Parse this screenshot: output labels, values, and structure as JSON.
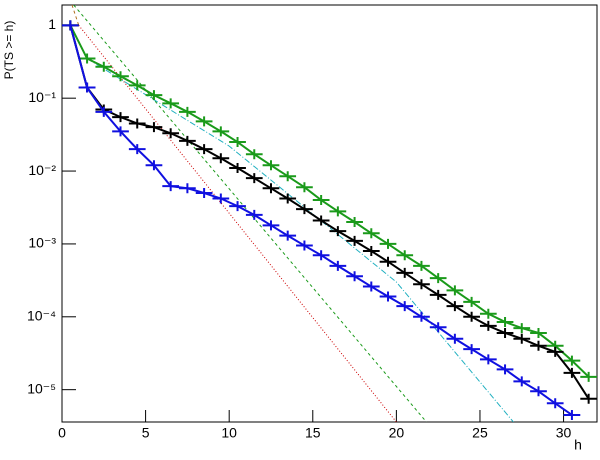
{
  "chart_data": {
    "type": "line",
    "log_y": true,
    "x_label": "h",
    "y_label": "P(TS >= h)",
    "xlim": [
      0,
      32
    ],
    "ylim": [
      3.6e-06,
      1.9
    ],
    "xticks": [
      0,
      5,
      10,
      15,
      20,
      25,
      30
    ],
    "yticks": [
      {
        "value": 1,
        "label": "1"
      },
      {
        "value": 0.1,
        "label": "10⁻¹"
      },
      {
        "value": 0.01,
        "label": "10⁻²"
      },
      {
        "value": 0.001,
        "label": "10⁻³"
      },
      {
        "value": 0.0001,
        "label": "10⁻⁴"
      },
      {
        "value": 1e-05,
        "label": "10⁻⁵"
      }
    ],
    "x": [
      0.5,
      1.5,
      2.5,
      3.5,
      4.5,
      5.5,
      6.5,
      7.5,
      8.5,
      9.5,
      10.5,
      11.5,
      12.5,
      13.5,
      14.5,
      15.5,
      16.5,
      17.5,
      18.5,
      19.5,
      20.5,
      21.5,
      22.5,
      23.5,
      24.5,
      25.5,
      26.5,
      27.5,
      28.5,
      29.5,
      30.5,
      31.5
    ],
    "series": [
      {
        "color": "#1a9a1a",
        "values": [
          1,
          0.35,
          0.27,
          0.2,
          0.15,
          0.11,
          0.085,
          0.065,
          0.048,
          0.035,
          0.025,
          0.017,
          0.012,
          0.0085,
          0.006,
          0.004,
          0.0028,
          0.002,
          0.0014,
          0.001,
          0.0007,
          0.0005,
          0.00034,
          0.00023,
          0.00016,
          0.00011,
          8.5e-05,
          7e-05,
          6e-05,
          4e-05,
          2.5e-05,
          1.5e-05
        ]
      },
      {
        "color": "#000000",
        "values": [
          1,
          0.14,
          0.07,
          0.055,
          0.045,
          0.04,
          0.033,
          0.026,
          0.02,
          0.015,
          0.011,
          0.008,
          0.0058,
          0.0042,
          0.003,
          0.0021,
          0.0015,
          0.0011,
          0.0008,
          0.00057,
          0.0004,
          0.00028,
          0.0002,
          0.00014,
          0.0001,
          7.5e-05,
          6e-05,
          5e-05,
          4e-05,
          3.3e-05,
          1.7e-05,
          7.5e-06
        ]
      },
      {
        "color": "#1010e0",
        "values": [
          1,
          0.14,
          0.065,
          0.035,
          0.02,
          0.012,
          0.0062,
          0.0058,
          0.005,
          0.0042,
          0.0033,
          0.0025,
          0.0018,
          0.0013,
          0.00095,
          0.0007,
          0.0005,
          0.00036,
          0.00026,
          0.00019,
          0.00014,
          0.0001,
          7.2e-05,
          5e-05,
          3.6e-05,
          2.6e-05,
          1.9e-05,
          1.3e-05,
          9.5e-06,
          6.5e-06,
          4.5e-06,
          null
        ]
      }
    ],
    "fits": [
      {
        "color": "#cc0000",
        "dash": "1,2",
        "x": [
          1,
          20
        ],
        "y": [
          1,
          3.6e-06
        ]
      },
      {
        "color": "#1a9a1a",
        "dash": "3,3",
        "x": [
          0.7,
          21.8
        ],
        "y": [
          1.9,
          3.6e-06
        ]
      },
      {
        "color": "#20b0c0",
        "dash": "6,2,1,2",
        "x": [
          1.5,
          10,
          20,
          27
        ],
        "y": [
          0.35,
          0.022,
          0.0003,
          3.6e-06
        ]
      },
      {
        "color": "#b07020",
        "dash": "3,3",
        "x": [
          0.6,
          1
        ],
        "y": [
          1.9,
          1
        ]
      }
    ]
  }
}
